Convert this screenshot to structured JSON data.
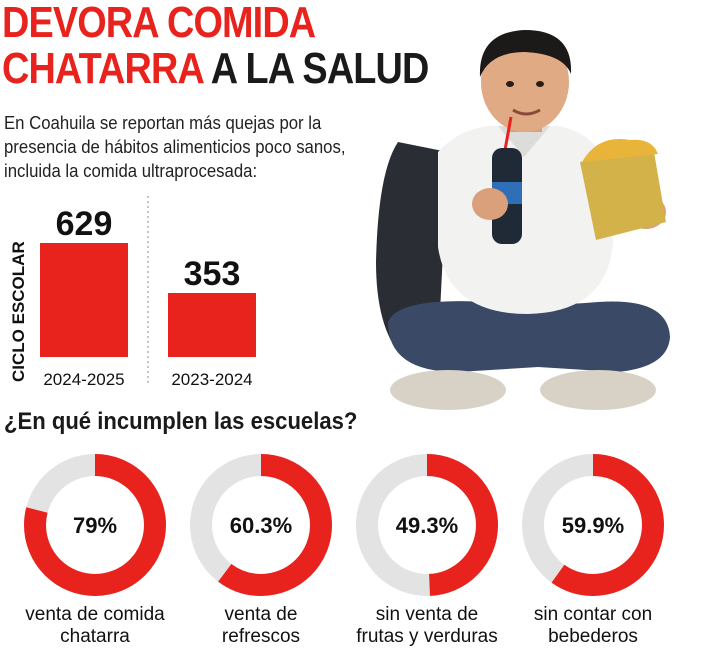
{
  "title": {
    "line1": "DEVORA COMIDA",
    "line2_red": "CHATARRA",
    "line2_dark": " A LA SALUD"
  },
  "intro": "En Coahuila se reportan más quejas por la presencia de hábitos alimenticios poco sanos, incluida la comida ultraprocesada:",
  "question": "¿En qué incumplen las escuelas?",
  "colors": {
    "accent": "#e8221c",
    "track": "#e3e3e3",
    "text": "#1a1a1a"
  },
  "chart_data": [
    {
      "type": "bar",
      "ylabel": "CICLO ESCOLAR",
      "categories": [
        "2024-2025",
        "2023-2024"
      ],
      "values": [
        629,
        353
      ],
      "ylim": [
        0,
        629
      ],
      "grid": false,
      "legend": "none"
    },
    {
      "type": "pie",
      "variant": "donut",
      "items": [
        {
          "label": "venta de comida\nchatarra",
          "value": 79,
          "display": "79%"
        },
        {
          "label": "venta de\nrefrescos",
          "value": 60.3,
          "display": "60.3%"
        },
        {
          "label": "sin venta de\nfrutas y verduras",
          "value": 49.3,
          "display": "49.3%"
        },
        {
          "label": "sin contar con\nbebederos",
          "value": 59.9,
          "display": "59.9%"
        }
      ]
    }
  ]
}
